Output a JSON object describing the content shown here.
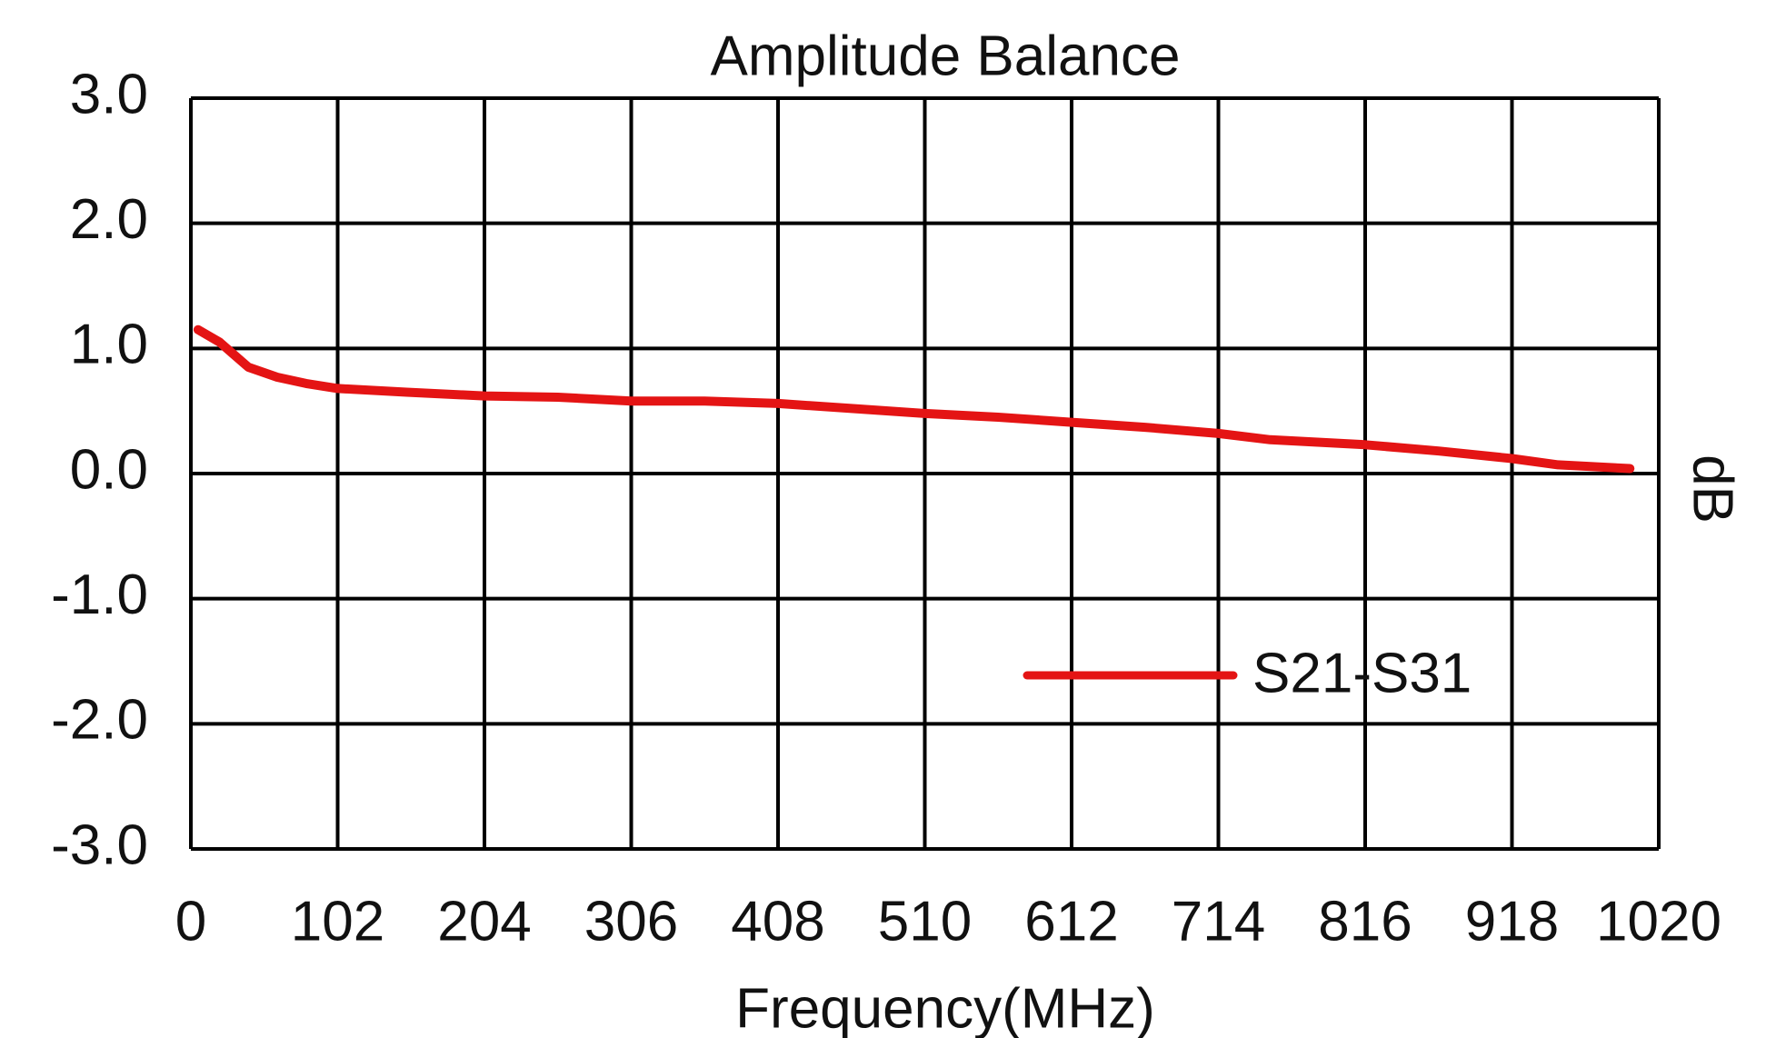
{
  "chart_data": {
    "type": "line",
    "title": "Amplitude Balance",
    "x_label": "Frequency(MHz)",
    "y_label": "dB",
    "xlim": [
      0,
      1020
    ],
    "xticks": [
      0,
      102,
      204,
      306,
      408,
      510,
      612,
      714,
      816,
      918,
      1020
    ],
    "ylim": [
      -3,
      3
    ],
    "yticks": [
      {
        "value": 3,
        "label": "3.0"
      },
      {
        "value": 2,
        "label": "2.0"
      },
      {
        "value": 1,
        "label": "1.0"
      },
      {
        "value": 0,
        "label": "0.0"
      },
      {
        "value": -1,
        "label": "-1.0"
      },
      {
        "value": -2,
        "label": "-2.0"
      },
      {
        "value": -3,
        "label": "-3.0"
      }
    ],
    "grid": true,
    "legend": "lower right",
    "x": [
      5,
      20,
      40,
      60,
      80,
      102,
      150,
      204,
      255,
      306,
      357,
      408,
      459,
      510,
      561,
      612,
      663,
      714,
      750,
      816,
      867,
      918,
      950,
      1000
    ],
    "series": [
      {
        "name": "S21-S31",
        "color": "#e41414",
        "values": [
          1.15,
          1.05,
          0.85,
          0.77,
          0.72,
          0.68,
          0.65,
          0.62,
          0.61,
          0.58,
          0.58,
          0.56,
          0.52,
          0.48,
          0.45,
          0.41,
          0.37,
          0.32,
          0.27,
          0.23,
          0.18,
          0.12,
          0.07,
          0.04
        ]
      }
    ]
  }
}
